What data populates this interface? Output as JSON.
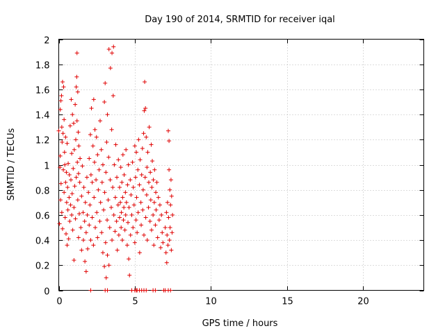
{
  "chart_data": {
    "type": "scatter",
    "title": "Day 190 of 2014, SRMTID for receiver iqal",
    "xlabel": "GPS time / hours",
    "ylabel": "SRMTID / TECUs",
    "xlim": [
      0,
      24
    ],
    "ylim": [
      0,
      2
    ],
    "x_ticks": [
      0,
      5,
      10,
      15,
      20
    ],
    "y_ticks": [
      0,
      0.2,
      0.4,
      0.6,
      0.8,
      1,
      1.2,
      1.4,
      1.6,
      1.8,
      2
    ],
    "x_tick_labels": [
      "0",
      "5",
      "10",
      "15",
      "20"
    ],
    "y_tick_labels": [
      "0",
      "0.2",
      "0.4",
      "0.6",
      "0.8",
      "1",
      "1.2",
      "1.4",
      "1.6",
      "1.8",
      "2"
    ],
    "grid": true,
    "marker": "plus",
    "marker_color": "#e00000",
    "series": [
      {
        "name": "iqal",
        "points": [
          [
            0.0,
            1.27
          ],
          [
            0.05,
            0.53
          ],
          [
            0.08,
            0.98
          ],
          [
            0.1,
            1.44
          ],
          [
            0.1,
            1.07
          ],
          [
            0.12,
            0.72
          ],
          [
            0.14,
            1.51
          ],
          [
            0.15,
            0.85
          ],
          [
            0.18,
            1.55
          ],
          [
            0.2,
            1.3
          ],
          [
            0.2,
            0.62
          ],
          [
            0.22,
            1.18
          ],
          [
            0.25,
            0.49
          ],
          [
            0.25,
            1.66
          ],
          [
            0.28,
            1.25
          ],
          [
            0.3,
            0.96
          ],
          [
            0.32,
            1.62
          ],
          [
            0.35,
            1.36
          ],
          [
            0.35,
            0.78
          ],
          [
            0.38,
            1.1
          ],
          [
            0.4,
            1.0
          ],
          [
            0.42,
            0.58
          ],
          [
            0.45,
            0.86
          ],
          [
            0.45,
            1.22
          ],
          [
            0.48,
            0.45
          ],
          [
            0.5,
            0.94
          ],
          [
            0.52,
            0.7
          ],
          [
            0.55,
            0.36
          ],
          [
            0.55,
            1.17
          ],
          [
            0.58,
            0.82
          ],
          [
            0.6,
            0.64
          ],
          [
            0.62,
            1.01
          ],
          [
            0.65,
            0.41
          ],
          [
            0.68,
            0.74
          ],
          [
            0.7,
            0.92
          ],
          [
            0.72,
            0.55
          ],
          [
            0.75,
            1.31
          ],
          [
            0.78,
            0.68
          ],
          [
            0.8,
            0.88
          ],
          [
            0.82,
            1.52
          ],
          [
            0.85,
            0.6
          ],
          [
            0.85,
            1.09
          ],
          [
            0.88,
            0.77
          ],
          [
            0.9,
            1.4
          ],
          [
            0.92,
            0.48
          ],
          [
            0.95,
            0.97
          ],
          [
            0.98,
            1.33
          ],
          [
            1.0,
            0.66
          ],
          [
            1.0,
            0.24
          ],
          [
            1.02,
            1.12
          ],
          [
            1.05,
            0.83
          ],
          [
            1.08,
            1.48
          ],
          [
            1.1,
            0.57
          ],
          [
            1.12,
            1.2
          ],
          [
            1.15,
            1.62
          ],
          [
            1.15,
            0.9
          ],
          [
            1.18,
            1.7
          ],
          [
            1.2,
            1.35
          ],
          [
            1.2,
            1.89
          ],
          [
            1.22,
            1.02
          ],
          [
            1.25,
            0.72
          ],
          [
            1.25,
            1.58
          ],
          [
            1.28,
            1.26
          ],
          [
            1.3,
            0.93
          ],
          [
            1.3,
            0.42
          ],
          [
            1.32,
            1.15
          ],
          [
            1.35,
            0.61
          ],
          [
            1.38,
            0.86
          ],
          [
            1.4,
            1.05
          ],
          [
            1.45,
            0.5
          ],
          [
            1.5,
            0.75
          ],
          [
            1.5,
            0.32
          ],
          [
            1.55,
            0.99
          ],
          [
            1.6,
            0.62
          ],
          [
            1.62,
            0.4
          ],
          [
            1.65,
            0.82
          ],
          [
            1.7,
            0.55
          ],
          [
            1.72,
            0.23
          ],
          [
            1.75,
            0.7
          ],
          [
            1.8,
            0.46
          ],
          [
            1.8,
            0.15
          ],
          [
            1.85,
            0.9
          ],
          [
            1.88,
            0.6
          ],
          [
            1.9,
            0.33
          ],
          [
            1.95,
            0.78
          ],
          [
            2.0,
            1.05
          ],
          [
            2.0,
            0.52
          ],
          [
            2.05,
            0.68
          ],
          [
            2.08,
            1.24
          ],
          [
            2.1,
            0.4
          ],
          [
            2.12,
            0.92
          ],
          [
            2.15,
            1.45
          ],
          [
            2.2,
            0.58
          ],
          [
            2.2,
            0.86
          ],
          [
            2.25,
            1.15
          ],
          [
            2.28,
            0.36
          ],
          [
            2.3,
            1.52
          ],
          [
            2.32,
            0.74
          ],
          [
            2.35,
            1.02
          ],
          [
            2.38,
            1.28
          ],
          [
            2.4,
            0.5
          ],
          [
            2.45,
            0.88
          ],
          [
            2.48,
            1.22
          ],
          [
            2.5,
            0.62
          ],
          [
            2.55,
            1.08
          ],
          [
            2.55,
            0.42
          ],
          [
            2.6,
            0.8
          ],
          [
            2.65,
            0.96
          ],
          [
            2.7,
            0.55
          ],
          [
            2.72,
            1.35
          ],
          [
            2.75,
            0.7
          ],
          [
            2.8,
            1.12
          ],
          [
            2.82,
            0.46
          ],
          [
            2.85,
            0.86
          ],
          [
            2.9,
            0.3
          ],
          [
            2.9,
            1.0
          ],
          [
            2.95,
            0.64
          ],
          [
            3.0,
            1.5
          ],
          [
            3.0,
            0.19
          ],
          [
            3.02,
            0.78
          ],
          [
            3.05,
            1.65
          ],
          [
            3.08,
            0.38
          ],
          [
            3.1,
            0.94
          ],
          [
            3.12,
            0.1
          ],
          [
            3.15,
            1.18
          ],
          [
            3.18,
            0.56
          ],
          [
            3.2,
            0.28
          ],
          [
            3.2,
            1.4
          ],
          [
            3.25,
            0.72
          ],
          [
            3.28,
            1.06
          ],
          [
            3.3,
            0.2
          ],
          [
            3.3,
            1.92
          ],
          [
            3.35,
            0.5
          ],
          [
            3.38,
            0.88
          ],
          [
            3.4,
            1.77
          ],
          [
            3.45,
            0.66
          ],
          [
            3.48,
            1.28
          ],
          [
            3.5,
            0.4
          ],
          [
            3.5,
            1.89
          ],
          [
            3.55,
            0.82
          ],
          [
            3.58,
            1.55
          ],
          [
            3.6,
            1.94
          ],
          [
            3.62,
            0.6
          ],
          [
            3.65,
            1.0
          ],
          [
            3.7,
            0.47
          ],
          [
            3.72,
            0.74
          ],
          [
            3.75,
            1.16
          ],
          [
            3.8,
            0.55
          ],
          [
            3.82,
            0.9
          ],
          [
            3.85,
            0.32
          ],
          [
            3.9,
            0.68
          ],
          [
            3.92,
            1.04
          ],
          [
            3.95,
            0.44
          ],
          [
            4.0,
            0.82
          ],
          [
            4.0,
            0.58
          ],
          [
            4.05,
            0.7
          ],
          [
            4.08,
            0.98
          ],
          [
            4.1,
            0.5
          ],
          [
            4.12,
            0.62
          ],
          [
            4.15,
            0.86
          ],
          [
            4.18,
            0.4
          ],
          [
            4.2,
            0.74
          ],
          [
            4.22,
            1.08
          ],
          [
            4.25,
            0.56
          ],
          [
            4.28,
            0.66
          ],
          [
            4.3,
            0.92
          ],
          [
            4.35,
            0.48
          ],
          [
            4.38,
            0.78
          ],
          [
            4.4,
            0.6
          ],
          [
            4.42,
            1.12
          ],
          [
            4.45,
            0.7
          ],
          [
            4.5,
            0.36
          ],
          [
            4.52,
            0.84
          ],
          [
            4.55,
            0.54
          ],
          [
            4.58,
            1.0
          ],
          [
            4.6,
            0.25
          ],
          [
            4.62,
            0.66
          ],
          [
            4.65,
            0.12
          ],
          [
            4.7,
            0.88
          ],
          [
            4.72,
            0.44
          ],
          [
            4.75,
            0.76
          ],
          [
            4.8,
            0.6
          ],
          [
            4.85,
            1.02
          ],
          [
            4.88,
            0.5
          ],
          [
            4.9,
            0.82
          ],
          [
            4.95,
            0.68
          ],
          [
            5.0,
            1.15
          ],
          [
            5.0,
            0.38
          ],
          [
            5.05,
            0.9
          ],
          [
            5.08,
            0.56
          ],
          [
            5.1,
            1.1
          ],
          [
            5.12,
            0.74
          ],
          [
            5.15,
            0.46
          ],
          [
            5.2,
            0.96
          ],
          [
            5.22,
            0.62
          ],
          [
            5.25,
            1.2
          ],
          [
            5.3,
            0.84
          ],
          [
            5.32,
            0.3
          ],
          [
            5.35,
            1.04
          ],
          [
            5.4,
            0.7
          ],
          [
            5.42,
            0.52
          ],
          [
            5.45,
            0.92
          ],
          [
            5.5,
            1.13
          ],
          [
            5.52,
            0.64
          ],
          [
            5.55,
            0.8
          ],
          [
            5.58,
            1.25
          ],
          [
            5.6,
            0.44
          ],
          [
            5.62,
            1.43
          ],
          [
            5.65,
            1.66
          ],
          [
            5.68,
            0.9
          ],
          [
            5.7,
            1.45
          ],
          [
            5.72,
            0.58
          ],
          [
            5.75,
            1.22
          ],
          [
            5.78,
            0.76
          ],
          [
            5.8,
            0.98
          ],
          [
            5.82,
            0.4
          ],
          [
            5.85,
            1.1
          ],
          [
            5.9,
            0.66
          ],
          [
            5.92,
            0.86
          ],
          [
            5.95,
            1.3
          ],
          [
            6.0,
            0.55
          ],
          [
            6.02,
            0.94
          ],
          [
            6.05,
            0.72
          ],
          [
            6.08,
            1.16
          ],
          [
            6.1,
            0.48
          ],
          [
            6.12,
            0.82
          ],
          [
            6.15,
            1.03
          ],
          [
            6.2,
            0.6
          ],
          [
            6.22,
            0.88
          ],
          [
            6.25,
            0.36
          ],
          [
            6.28,
            0.7
          ],
          [
            6.3,
            0.96
          ],
          [
            6.35,
            0.52
          ],
          [
            6.38,
            0.78
          ],
          [
            6.4,
            0.64
          ],
          [
            6.45,
            0.86
          ],
          [
            6.5,
            0.42
          ],
          [
            6.55,
            0.74
          ],
          [
            6.6,
            0.56
          ],
          [
            6.65,
            0.68
          ],
          [
            6.7,
            0.34
          ],
          [
            6.75,
            0.6
          ],
          [
            6.8,
            0.46
          ],
          [
            6.85,
            0.38
          ],
          [
            7.0,
            0.5
          ],
          [
            7.05,
            0.3
          ],
          [
            7.08,
            0.62
          ],
          [
            7.1,
            0.22
          ],
          [
            7.12,
            0.44
          ],
          [
            7.15,
            0.7
          ],
          [
            7.18,
            0.36
          ],
          [
            7.2,
            1.27
          ],
          [
            7.22,
            0.58
          ],
          [
            7.25,
            1.19
          ],
          [
            7.25,
            0.96
          ],
          [
            7.28,
            0.4
          ],
          [
            7.3,
            0.8
          ],
          [
            7.32,
            0.5
          ],
          [
            7.35,
            0.68
          ],
          [
            7.38,
            0.88
          ],
          [
            7.4,
            0.32
          ],
          [
            7.42,
            0.75
          ],
          [
            7.45,
            0.46
          ],
          [
            7.48,
            0.6
          ],
          [
            2.1,
            0.0
          ],
          [
            3.05,
            0.0
          ],
          [
            3.2,
            0.0
          ],
          [
            4.8,
            0.0
          ],
          [
            5.0,
            0.0
          ],
          [
            5.1,
            0.0
          ],
          [
            5.15,
            0.0
          ],
          [
            5.3,
            0.0
          ],
          [
            5.45,
            0.0
          ],
          [
            5.6,
            0.0
          ],
          [
            5.75,
            0.0
          ],
          [
            6.2,
            0.0
          ],
          [
            6.35,
            0.0
          ],
          [
            6.9,
            0.0
          ],
          [
            7.0,
            0.0
          ],
          [
            7.2,
            0.0
          ],
          [
            7.35,
            0.0
          ]
        ]
      }
    ]
  }
}
